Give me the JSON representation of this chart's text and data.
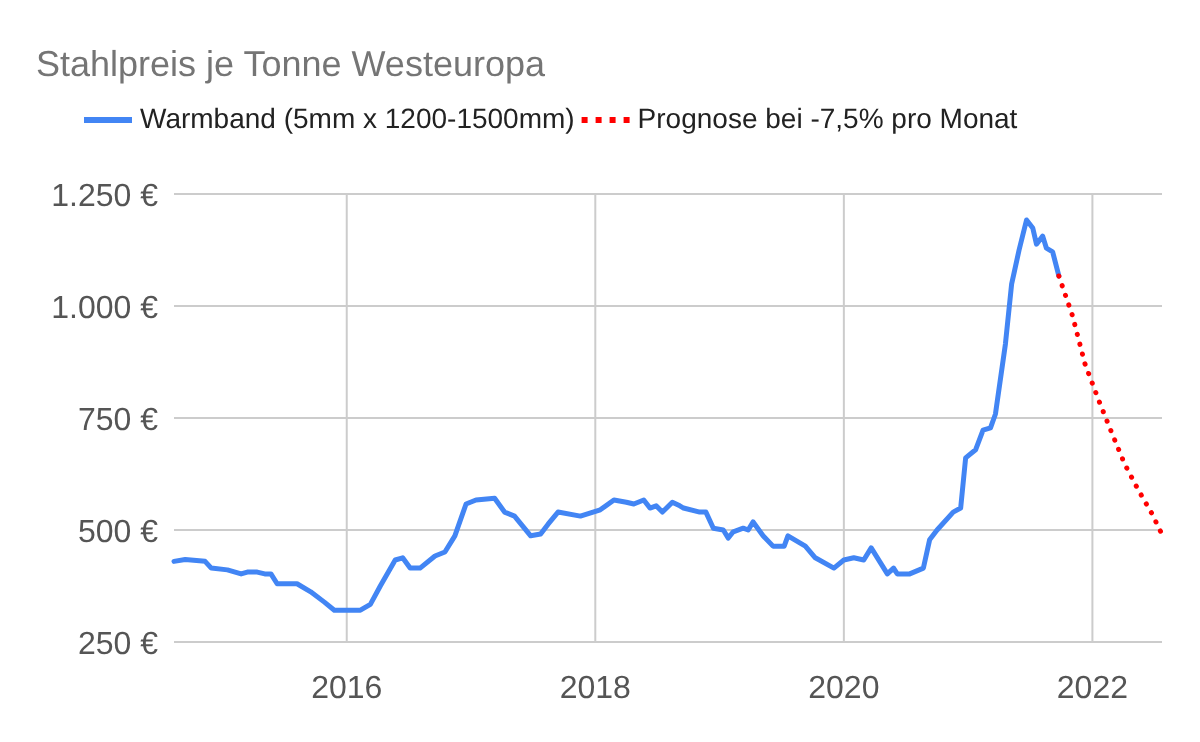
{
  "chart_data": {
    "type": "line",
    "title": "Stahlpreis je Tonne Westeuropa",
    "legend": "top",
    "grid": true,
    "xlim": [
      2014.61,
      2022.56
    ],
    "xticks": [
      2016,
      2018,
      2020,
      2022
    ],
    "ylim": [
      250,
      1250
    ],
    "yticks": [
      {
        "value": 250,
        "label": "250 €"
      },
      {
        "value": 500,
        "label": "500 €"
      },
      {
        "value": 750,
        "label": "750 €"
      },
      {
        "value": 1000,
        "label": "1.000 €"
      },
      {
        "value": 1250,
        "label": "1.250 €"
      }
    ],
    "series": [
      {
        "name": "Warmband (5mm x 1200-1500mm)",
        "color": "#4285f4",
        "line_style": "solid",
        "x": [
          2014.61,
          2014.7,
          2014.86,
          2014.91,
          2015.04,
          2015.15,
          2015.2,
          2015.28,
          2015.34,
          2015.39,
          2015.44,
          2015.6,
          2015.71,
          2015.82,
          2015.9,
          2016.0,
          2016.11,
          2016.19,
          2016.27,
          2016.39,
          2016.45,
          2016.51,
          2016.59,
          2016.71,
          2016.79,
          2016.87,
          2016.96,
          2017.04,
          2017.19,
          2017.27,
          2017.35,
          2017.48,
          2017.56,
          2017.62,
          2017.7,
          2017.88,
          2018.04,
          2018.15,
          2018.25,
          2018.31,
          2018.39,
          2018.44,
          2018.49,
          2018.54,
          2018.62,
          2018.68,
          2018.71,
          2018.84,
          2018.89,
          2018.95,
          2019.03,
          2019.07,
          2019.11,
          2019.19,
          2019.23,
          2019.27,
          2019.35,
          2019.43,
          2019.52,
          2019.55,
          2019.69,
          2019.77,
          2019.92,
          2020.0,
          2020.08,
          2020.16,
          2020.22,
          2020.29,
          2020.35,
          2020.4,
          2020.43,
          2020.53,
          2020.64,
          2020.69,
          2020.75,
          2020.88,
          2020.94,
          2020.98,
          2021.06,
          2021.12,
          2021.18,
          2021.22,
          2021.3,
          2021.35,
          2021.41,
          2021.47,
          2021.52,
          2021.55,
          2021.6,
          2021.63,
          2021.68,
          2021.73
        ],
        "values": [
          430,
          434,
          430,
          415,
          411,
          402,
          406,
          406,
          402,
          402,
          380,
          380,
          362,
          339,
          321,
          321,
          321,
          334,
          375,
          433,
          438,
          415,
          415,
          442,
          451,
          487,
          558,
          567,
          571,
          540,
          531,
          487,
          491,
          513,
          540,
          531,
          545,
          567,
          562,
          558,
          567,
          549,
          554,
          540,
          562,
          554,
          549,
          540,
          540,
          504,
          500,
          482,
          496,
          504,
          500,
          518,
          487,
          464,
          464,
          487,
          464,
          438,
          415,
          433,
          438,
          433,
          460,
          429,
          402,
          415,
          402,
          402,
          415,
          478,
          500,
          540,
          549,
          661,
          679,
          723,
          728,
          759,
          915,
          1049,
          1125,
          1192,
          1174,
          1138,
          1156,
          1129,
          1121,
          1067
        ]
      },
      {
        "name": "Prognose bei -7,5% pro Monat",
        "color": "#ff0000",
        "line_style": "dotted",
        "x": [
          2021.73,
          2021.84,
          2021.94,
          2022.05,
          2022.16,
          2022.26,
          2022.37,
          2022.48,
          2022.55
        ],
        "values": [
          1067,
          978,
          871,
          790,
          714,
          647,
          589,
          536,
          496
        ]
      }
    ]
  }
}
